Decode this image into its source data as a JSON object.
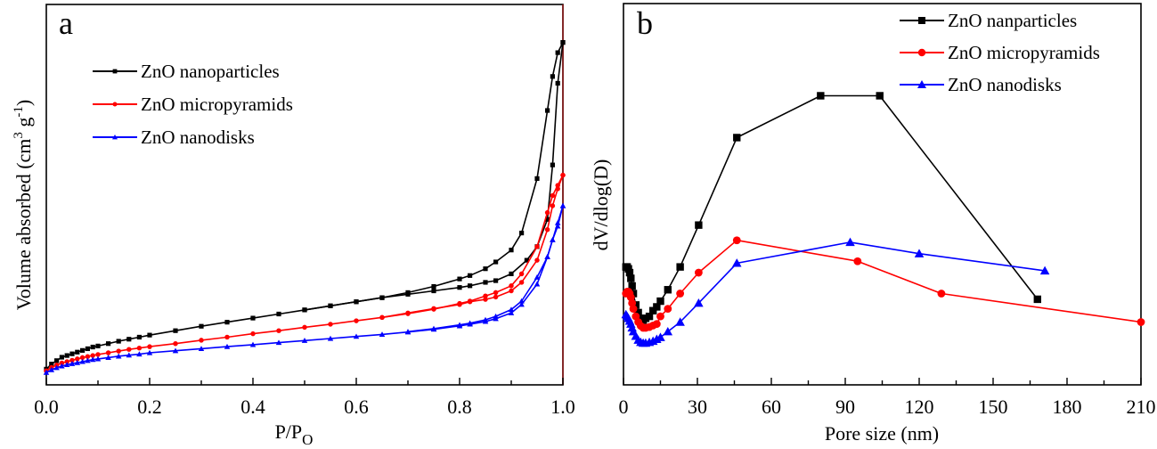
{
  "chart_data": [
    {
      "panel": "a",
      "type": "line",
      "title": "",
      "panel_label": "a",
      "xlabel": "P/P",
      "xlabel_sub": "O",
      "ylabel": "Volume absorbed (cm",
      "ylabel_sup1": "3",
      "ylabel_mid": " g",
      "ylabel_sup2": "-1",
      "ylabel_end": ")",
      "xlim": [
        0.0,
        1.0
      ],
      "ylim": [
        0,
        100
      ],
      "y_ticks_shown": false,
      "x_ticks": [
        "0.0",
        "0.2",
        "0.4",
        "0.6",
        "0.8",
        "1.0"
      ],
      "x_tick_values": [
        0.0,
        0.2,
        0.4,
        0.6,
        0.8,
        1.0
      ],
      "legend_position": "top-left",
      "series": [
        {
          "name": "ZnO nanoparticles",
          "color": "#000000",
          "marker": "square",
          "adsorption": {
            "x": [
              0.0,
              0.01,
              0.02,
              0.03,
              0.04,
              0.05,
              0.06,
              0.07,
              0.08,
              0.09,
              0.1,
              0.12,
              0.14,
              0.16,
              0.18,
              0.2,
              0.25,
              0.3,
              0.35,
              0.4,
              0.45,
              0.5,
              0.55,
              0.6,
              0.65,
              0.7,
              0.75,
              0.8,
              0.82,
              0.85,
              0.87,
              0.9,
              0.92,
              0.95,
              0.97,
              0.98,
              0.99,
              1.0
            ],
            "y": [
              2.0,
              3.5,
              4.5,
              5.5,
              6.0,
              6.5,
              7.0,
              7.5,
              8.0,
              8.5,
              8.8,
              9.5,
              10.2,
              10.8,
              11.4,
              12.0,
              13.3,
              14.6,
              15.8,
              17.0,
              18.2,
              19.4,
              20.6,
              21.8,
              23.0,
              24.5,
              26.3,
              28.5,
              29.5,
              31.5,
              33.5,
              37.0,
              42.0,
              58.0,
              78.0,
              88.0,
              95.0,
              98.0
            ]
          },
          "desorption": {
            "x": [
              1.0,
              0.99,
              0.98,
              0.97,
              0.95,
              0.93,
              0.9,
              0.87,
              0.85,
              0.82,
              0.8,
              0.75,
              0.7,
              0.65,
              0.6,
              0.55,
              0.5
            ],
            "y": [
              98.0,
              86.0,
              62.0,
              46.0,
              38.0,
              34.0,
              30.0,
              28.0,
              27.5,
              26.5,
              26.0,
              25.0,
              24.0,
              23.0,
              21.8,
              20.6,
              19.4
            ]
          }
        },
        {
          "name": "ZnO micropyramids",
          "color": "#ff0000",
          "marker": "circle",
          "adsorption": {
            "x": [
              0.0,
              0.01,
              0.02,
              0.03,
              0.04,
              0.05,
              0.06,
              0.07,
              0.08,
              0.09,
              0.1,
              0.12,
              0.14,
              0.16,
              0.18,
              0.2,
              0.25,
              0.3,
              0.35,
              0.4,
              0.45,
              0.5,
              0.55,
              0.6,
              0.65,
              0.7,
              0.75,
              0.8,
              0.82,
              0.85,
              0.87,
              0.9,
              0.92,
              0.95,
              0.97,
              0.98,
              0.99,
              1.0
            ],
            "y": [
              1.5,
              2.5,
              3.2,
              3.8,
              4.2,
              4.6,
              5.0,
              5.4,
              5.7,
              6.0,
              6.3,
              6.8,
              7.3,
              7.8,
              8.2,
              8.6,
              9.5,
              10.5,
              11.4,
              12.4,
              13.3,
              14.3,
              15.2,
              16.2,
              17.2,
              18.3,
              19.6,
              21.3,
              22.0,
              23.5,
              24.5,
              26.5,
              30.0,
              38.0,
              48.0,
              53.0,
              56.0,
              59.0
            ]
          },
          "desorption": {
            "x": [
              1.0,
              0.99,
              0.98,
              0.97,
              0.95,
              0.92,
              0.9,
              0.87,
              0.85,
              0.82,
              0.8,
              0.75,
              0.7,
              0.65
            ],
            "y": [
              59.0,
              55.0,
              50.0,
              43.0,
              34.0,
              27.5,
              25.0,
              23.2,
              22.5,
              21.8,
              21.0,
              19.8,
              18.5,
              17.2
            ]
          }
        },
        {
          "name": "ZnO nanodisks",
          "color": "#0000ff",
          "marker": "triangle",
          "adsorption": {
            "x": [
              0.0,
              0.01,
              0.02,
              0.03,
              0.04,
              0.05,
              0.06,
              0.07,
              0.08,
              0.09,
              0.1,
              0.12,
              0.14,
              0.16,
              0.18,
              0.2,
              0.25,
              0.3,
              0.35,
              0.4,
              0.45,
              0.5,
              0.55,
              0.6,
              0.65,
              0.7,
              0.75,
              0.8,
              0.82,
              0.85,
              0.87,
              0.9,
              0.92,
              0.95,
              0.97,
              0.98,
              0.99,
              1.0
            ],
            "y": [
              1.0,
              1.8,
              2.4,
              2.9,
              3.3,
              3.6,
              3.9,
              4.2,
              4.5,
              4.8,
              5.0,
              5.4,
              5.8,
              6.1,
              6.4,
              6.8,
              7.4,
              8.0,
              8.6,
              9.2,
              9.8,
              10.4,
              11.0,
              11.6,
              12.2,
              12.9,
              13.7,
              14.7,
              15.2,
              16.0,
              16.8,
              18.5,
              21.0,
              27.0,
              35.0,
              40.0,
              45.0,
              50.0
            ]
          },
          "desorption": {
            "x": [
              1.0,
              0.99,
              0.98,
              0.97,
              0.95,
              0.92,
              0.9,
              0.87,
              0.85,
              0.82,
              0.8,
              0.75,
              0.7
            ],
            "y": [
              50.0,
              44.0,
              40.0,
              35.0,
              29.0,
              22.0,
              19.5,
              17.5,
              16.5,
              15.5,
              15.0,
              13.9,
              13.0
            ]
          }
        }
      ]
    },
    {
      "panel": "b",
      "type": "line",
      "title": "",
      "panel_label": "b",
      "xlabel": "Pore size (nm)",
      "ylabel": "dV/dlog(D)",
      "xlim": [
        0,
        210
      ],
      "ylim": [
        0,
        100
      ],
      "y_ticks_shown": false,
      "x_ticks": [
        "0",
        "30",
        "60",
        "90",
        "120",
        "150",
        "180",
        "210"
      ],
      "x_tick_values": [
        0,
        30,
        60,
        90,
        120,
        150,
        180,
        210
      ],
      "legend_position": "top-right",
      "series": [
        {
          "name": "ZnO nanparticles",
          "color": "#000000",
          "marker": "square",
          "x": [
            1.0,
            1.5,
            2.0,
            2.5,
            3.0,
            3.5,
            4.0,
            5.0,
            6.0,
            7.0,
            8.0,
            9.0,
            10.5,
            12.0,
            13.5,
            15.0,
            18.0,
            23.0,
            30.5,
            46.0,
            80.0,
            104.0,
            168.0
          ],
          "y": [
            31.0,
            31.0,
            30.5,
            29.5,
            28.0,
            26.0,
            24.0,
            21.0,
            19.0,
            17.5,
            17.0,
            17.5,
            18.0,
            19.5,
            20.5,
            22.0,
            25.0,
            31.0,
            42.0,
            65.0,
            76.0,
            76.0,
            22.5
          ]
        },
        {
          "name": "ZnO micropyramids",
          "color": "#ff0000",
          "marker": "circle",
          "x": [
            1.0,
            1.5,
            2.0,
            2.5,
            3.0,
            3.5,
            4.0,
            5.0,
            6.0,
            7.0,
            8.0,
            9.0,
            10.5,
            12.0,
            13.5,
            15.0,
            18.0,
            23.0,
            30.5,
            46.0,
            95.0,
            129.0,
            210.0
          ],
          "y": [
            24.0,
            24.5,
            24.5,
            24.0,
            23.0,
            21.5,
            20.0,
            18.0,
            16.5,
            15.5,
            15.0,
            15.0,
            15.2,
            15.6,
            16.0,
            18.0,
            20.0,
            24.0,
            29.5,
            38.0,
            32.5,
            24.0,
            16.5
          ]
        },
        {
          "name": "ZnO nanodisks",
          "color": "#0000ff",
          "marker": "triangle",
          "x": [
            1.0,
            1.5,
            2.0,
            2.5,
            3.0,
            3.5,
            4.0,
            5.0,
            6.0,
            7.0,
            8.0,
            9.0,
            10.5,
            12.0,
            13.5,
            15.0,
            18.0,
            23.0,
            30.5,
            46.0,
            92.0,
            120.0,
            171.0
          ],
          "y": [
            18.5,
            18.0,
            17.5,
            16.8,
            16.0,
            15.0,
            14.0,
            12.8,
            11.8,
            11.2,
            11.0,
            11.0,
            11.2,
            11.5,
            12.0,
            12.5,
            14.0,
            16.5,
            21.5,
            32.0,
            37.5,
            34.5,
            30.0
          ]
        }
      ]
    }
  ]
}
